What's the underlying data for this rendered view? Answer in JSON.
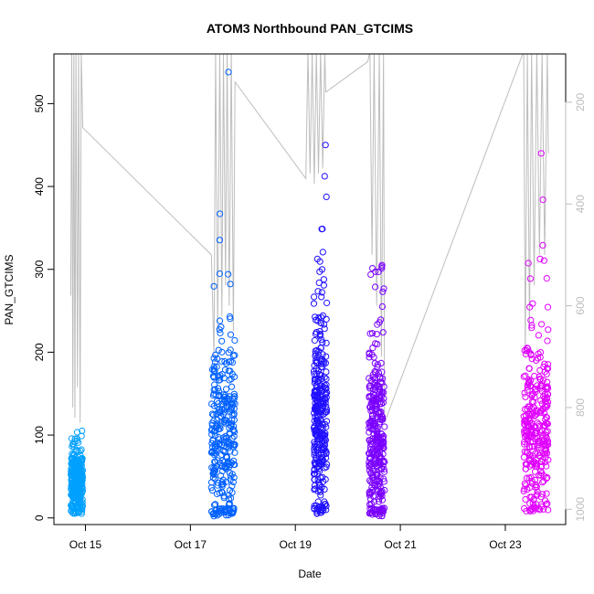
{
  "chart_data": {
    "type": "scatter",
    "title": "ATOM3 Northbound PAN_GTCIMS",
    "xlabel": "Date",
    "ylabel": "PAN_GTCIMS",
    "x_ticks": [
      "Oct 15",
      "Oct 17",
      "Oct 19",
      "Oct 21",
      "Oct 23"
    ],
    "x_tick_values": [
      15,
      17,
      19,
      21,
      23
    ],
    "xlim": [
      14.4,
      24.15
    ],
    "ylim": [
      -8,
      560
    ],
    "y_ticks": [
      0,
      100,
      200,
      300,
      400,
      500
    ],
    "y2_ticks": [
      200,
      400,
      600,
      800,
      1000
    ],
    "y2_scale": "reversed",
    "y2lim_top_to_bottom": [
      105,
      1030
    ],
    "grid": false,
    "legend": "none",
    "series": [
      {
        "color": "#00a0ff",
        "x_range": [
          14.72,
          14.95
        ],
        "y_median": 45,
        "y_spread": 18,
        "y_max": 105,
        "y_min": 5
      },
      {
        "color": "#0060ff",
        "x_range": [
          17.4,
          17.85
        ],
        "y_median": 100,
        "y_spread": 60,
        "y_max": 538,
        "y_min": 2
      },
      {
        "color": "#2010ff",
        "x_range": [
          19.35,
          19.6
        ],
        "y_median": 120,
        "y_spread": 65,
        "y_max": 450,
        "y_min": 5
      },
      {
        "color": "#7a00ff",
        "x_range": [
          20.4,
          20.7
        ],
        "y_median": 95,
        "y_spread": 55,
        "y_max": 305,
        "y_min": 2
      },
      {
        "color": "#e000ff",
        "x_range": [
          23.35,
          23.82
        ],
        "y_median": 105,
        "y_spread": 55,
        "y_max": 440,
        "y_min": 8
      }
    ],
    "overlay_line": {
      "axis": "right",
      "color": "#bdbdbd",
      "description": "secondary series (right axis, reversed)",
      "points": [
        [
          14.72,
          580
        ],
        [
          14.74,
          100
        ],
        [
          14.76,
          800
        ],
        [
          14.78,
          100
        ],
        [
          14.8,
          820
        ],
        [
          14.82,
          100
        ],
        [
          14.85,
          760
        ],
        [
          14.87,
          100
        ],
        [
          14.9,
          830
        ],
        [
          14.92,
          100
        ],
        [
          14.95,
          250
        ],
        [
          17.4,
          500
        ],
        [
          17.45,
          700
        ],
        [
          17.48,
          100
        ],
        [
          17.52,
          650
        ],
        [
          17.56,
          100
        ],
        [
          17.6,
          620
        ],
        [
          17.63,
          100
        ],
        [
          17.67,
          560
        ],
        [
          17.7,
          100
        ],
        [
          17.74,
          600
        ],
        [
          17.78,
          100
        ],
        [
          17.82,
          650
        ],
        [
          17.85,
          160
        ],
        [
          19.2,
          350
        ],
        [
          19.24,
          100
        ],
        [
          19.28,
          340
        ],
        [
          19.32,
          100
        ],
        [
          19.36,
          360
        ],
        [
          19.4,
          100
        ],
        [
          19.44,
          340
        ],
        [
          19.48,
          100
        ],
        [
          19.52,
          330
        ],
        [
          19.56,
          100
        ],
        [
          19.58,
          180
        ],
        [
          20.38,
          120
        ],
        [
          20.42,
          100
        ],
        [
          20.46,
          500
        ],
        [
          20.5,
          100
        ],
        [
          20.55,
          600
        ],
        [
          20.6,
          100
        ],
        [
          20.64,
          700
        ],
        [
          20.68,
          100
        ],
        [
          20.7,
          830
        ],
        [
          23.35,
          100
        ],
        [
          23.38,
          700
        ],
        [
          23.42,
          100
        ],
        [
          23.46,
          650
        ],
        [
          23.5,
          100
        ],
        [
          23.55,
          560
        ],
        [
          23.6,
          100
        ],
        [
          23.65,
          500
        ],
        [
          23.7,
          100
        ],
        [
          23.75,
          500
        ],
        [
          23.8,
          100
        ],
        [
          23.82,
          300
        ]
      ]
    }
  }
}
